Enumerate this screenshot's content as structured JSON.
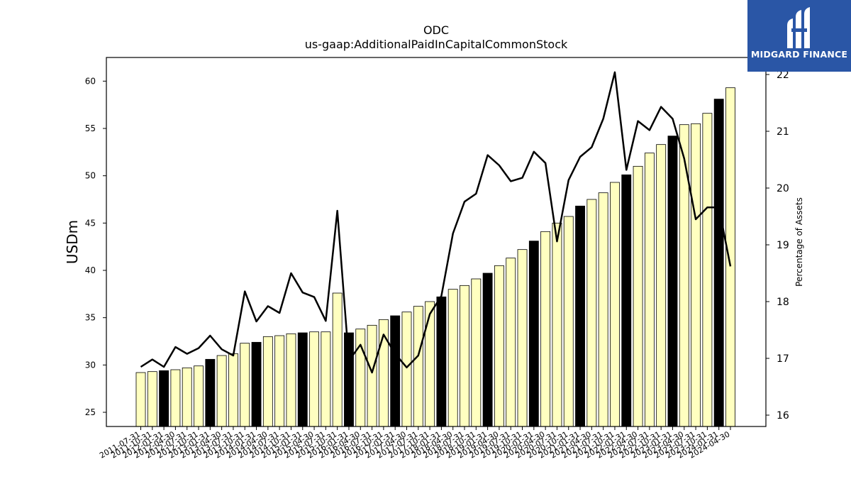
{
  "brand": {
    "name": "MIDGARD FINANCE",
    "bg_color": "#2a56a6"
  },
  "chart_data": {
    "type": "bar",
    "title": "ODC",
    "subtitle": "us-gaap:AdditionalPaidInCapitalCommonStock",
    "ylabel": "USDm",
    "y2label": "Percentage of Assets",
    "ylim": [
      23.5,
      62.5
    ],
    "y2lim": [
      15.8,
      22.3
    ],
    "yticks": [
      25,
      30,
      35,
      40,
      45,
      50,
      55,
      60
    ],
    "y2ticks": [
      16,
      17,
      18,
      19,
      20,
      21,
      22
    ],
    "bar_fill_regular": "#ffffc0",
    "bar_fill_highlight": "#000000",
    "line_color": "#000000",
    "categories": [
      "2011-07-31",
      "2011-10-31",
      "2012-01-31",
      "2012-04-30",
      "2012-07-31",
      "2012-10-31",
      "2013-01-31",
      "2013-04-30",
      "2013-07-31",
      "2013-10-31",
      "2014-01-31",
      "2014-04-30",
      "2014-07-31",
      "2014-10-31",
      "2015-01-31",
      "2015-04-30",
      "2015-07-31",
      "2015-10-31",
      "2016-01-31",
      "2016-04-30",
      "2016-07-31",
      "2016-10-31",
      "2017-01-31",
      "2017-04-30",
      "2017-07-31",
      "2017-10-31",
      "2018-01-31",
      "2018-04-30",
      "2018-07-31",
      "2018-10-31",
      "2019-01-31",
      "2019-04-30",
      "2019-07-31",
      "2019-10-31",
      "2020-01-31",
      "2020-04-30",
      "2020-07-31",
      "2020-10-31",
      "2021-01-31",
      "2021-04-30",
      "2021-07-31",
      "2021-10-31",
      "2022-01-31",
      "2022-04-30",
      "2022-07-31",
      "2022-10-31",
      "2023-01-31",
      "2023-04-30",
      "2023-07-31",
      "2023-10-31",
      "2024-01-31",
      "2024-04-30"
    ],
    "series": [
      {
        "name": "USDm",
        "kind": "bar",
        "values": [
          29.2,
          29.3,
          29.4,
          29.5,
          29.7,
          29.9,
          30.6,
          31.0,
          31.2,
          32.3,
          32.4,
          33.0,
          33.1,
          33.3,
          33.4,
          33.5,
          33.5,
          37.6,
          33.4,
          33.8,
          34.2,
          34.8,
          35.2,
          35.6,
          36.2,
          36.7,
          37.2,
          38.0,
          38.4,
          39.1,
          39.7,
          40.5,
          41.3,
          42.2,
          43.1,
          44.1,
          45.0,
          45.7,
          46.8,
          47.5,
          48.2,
          49.3,
          50.1,
          51.0,
          52.4,
          53.3,
          54.2,
          55.4,
          55.5,
          56.6,
          58.1,
          59.3
        ],
        "highlight": [
          false,
          false,
          true,
          false,
          false,
          false,
          true,
          false,
          false,
          false,
          true,
          false,
          false,
          false,
          true,
          false,
          false,
          false,
          true,
          false,
          false,
          false,
          true,
          false,
          false,
          false,
          true,
          false,
          false,
          false,
          true,
          false,
          false,
          false,
          true,
          false,
          false,
          false,
          true,
          false,
          false,
          false,
          true,
          false,
          false,
          false,
          true,
          false,
          false,
          false,
          true,
          false
        ]
      },
      {
        "name": "Percentage of Assets",
        "kind": "line",
        "axis": "right",
        "values": [
          16.85,
          16.98,
          16.85,
          17.2,
          17.08,
          17.18,
          17.4,
          17.16,
          17.05,
          18.18,
          17.65,
          17.92,
          17.8,
          18.5,
          18.16,
          18.08,
          17.66,
          19.6,
          16.96,
          17.24,
          16.75,
          17.42,
          17.08,
          16.84,
          17.05,
          17.78,
          18.1,
          19.2,
          19.76,
          19.9,
          20.58,
          20.4,
          20.12,
          20.18,
          20.64,
          20.44,
          19.06,
          20.14,
          20.55,
          20.72,
          21.22,
          22.04,
          20.32,
          21.18,
          21.02,
          21.43,
          21.22,
          20.52,
          19.45,
          19.66,
          19.66,
          18.62
        ]
      }
    ],
    "grid": false,
    "legend": "none"
  }
}
